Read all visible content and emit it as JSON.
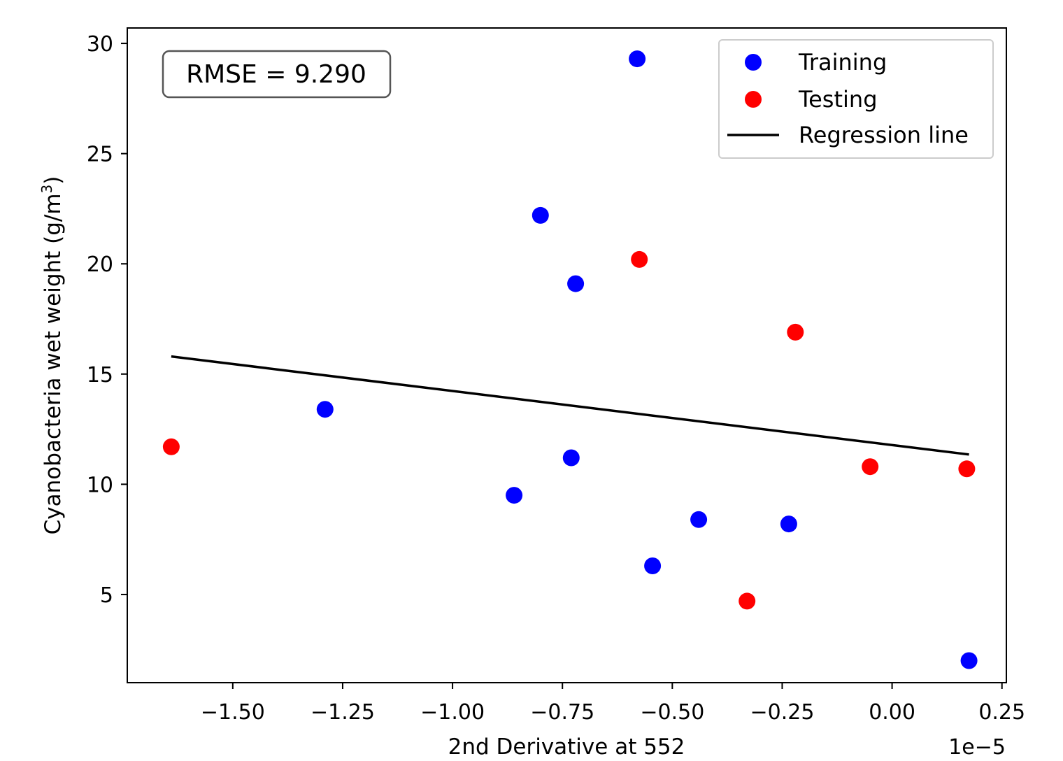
{
  "chart_data": {
    "type": "scatter",
    "xlabel": "2nd Derivative at 552",
    "x_offset_label": "1e−5",
    "ylabel_main": "Cyanobacteria wet weight (g/m",
    "ylabel_sup": "3",
    "ylabel_close": ")",
    "xlim": [
      -1.74,
      0.26
    ],
    "ylim": [
      1.0,
      30.7
    ],
    "x_ticks": [
      -1.5,
      -1.25,
      -1.0,
      -0.75,
      -0.5,
      -0.25,
      0.0,
      0.25
    ],
    "x_tick_labels": [
      "−1.50",
      "−1.25",
      "−1.00",
      "−0.75",
      "−0.50",
      "−0.25",
      "0.00",
      "0.25"
    ],
    "y_ticks": [
      5,
      10,
      15,
      20,
      25,
      30
    ],
    "y_tick_labels": [
      "5",
      "10",
      "15",
      "20",
      "25",
      "30"
    ],
    "grid": false,
    "legend_position": "top-right",
    "annotation": "RMSE = 9.290",
    "series": [
      {
        "name": "Training",
        "kind": "scatter",
        "color": "#0000ff",
        "points": [
          {
            "x": -0.58,
            "y": 29.3
          },
          {
            "x": -0.8,
            "y": 22.2
          },
          {
            "x": -0.72,
            "y": 19.1
          },
          {
            "x": -1.29,
            "y": 13.4
          },
          {
            "x": -0.73,
            "y": 11.2
          },
          {
            "x": -0.86,
            "y": 9.5
          },
          {
            "x": -0.44,
            "y": 8.4
          },
          {
            "x": -0.235,
            "y": 8.2
          },
          {
            "x": -0.545,
            "y": 6.3
          },
          {
            "x": 0.175,
            "y": 2.0
          }
        ]
      },
      {
        "name": "Testing",
        "kind": "scatter",
        "color": "#ff0000",
        "points": [
          {
            "x": -0.575,
            "y": 20.2
          },
          {
            "x": -0.22,
            "y": 16.9
          },
          {
            "x": -1.64,
            "y": 11.7
          },
          {
            "x": -0.05,
            "y": 10.8
          },
          {
            "x": 0.17,
            "y": 10.7
          },
          {
            "x": -0.33,
            "y": 4.7
          }
        ]
      },
      {
        "name": "Regression line",
        "kind": "line",
        "color": "#000000",
        "points": [
          {
            "x": -1.64,
            "y": 15.8
          },
          {
            "x": 0.175,
            "y": 11.35
          }
        ]
      }
    ]
  }
}
